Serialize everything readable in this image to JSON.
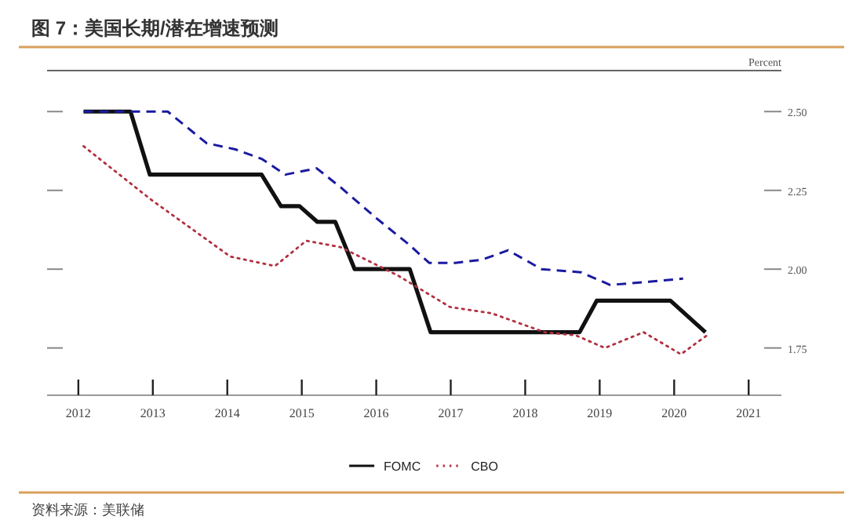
{
  "chart_data": {
    "type": "line",
    "title": "图 7：美国长期/潜在增速预测",
    "ylabel": "Percent",
    "annotations": [
      "资料来源：美联储"
    ],
    "xlim": [
      2011.58,
      2021.44
    ],
    "ylim": [
      1.6,
      2.63
    ],
    "xticks": [
      2012,
      2013,
      2014,
      2015,
      2016,
      2017,
      2018,
      2019,
      2020,
      2021
    ],
    "yticks": [
      1.75,
      {
        "value": 2,
        "label": "2.00"
      },
      2.25,
      {
        "value": 2.5,
        "label": "2.50"
      }
    ],
    "grid": false,
    "legend": "bottom",
    "series": [
      {
        "name": "FOMC",
        "color": "#111111",
        "line_style": "solid",
        "x": [
          2012.07,
          2012.7,
          2012.96,
          2014.46,
          2014.72,
          2014.97,
          2015.21,
          2015.45,
          2015.71,
          2016.45,
          2016.73,
          2018.73,
          2018.96,
          2019.95,
          2020.42
        ],
        "values": [
          2.5,
          2.5,
          2.3,
          2.3,
          2.2,
          2.2,
          2.15,
          2.15,
          2.0,
          2.0,
          1.8,
          1.8,
          1.9,
          1.9,
          1.8
        ]
      },
      {
        "color": "#1a1aa0",
        "line_style": "dashed",
        "x": [
          2012.07,
          2013.2,
          2013.72,
          2014.11,
          2014.46,
          2014.78,
          2015.2,
          2015.52,
          2016.01,
          2016.43,
          2016.71,
          2017.06,
          2017.42,
          2017.77,
          2018.22,
          2018.75,
          2019.14,
          2019.66,
          2020.12
        ],
        "values": [
          2.5,
          2.5,
          2.4,
          2.38,
          2.35,
          2.3,
          2.32,
          2.26,
          2.16,
          2.08,
          2.02,
          2.02,
          2.03,
          2.06,
          2.0,
          1.99,
          1.95,
          1.96,
          1.97
        ]
      },
      {
        "name": "CBO",
        "color": "#b03040",
        "line_style": "dotted",
        "x": [
          2012.07,
          2012.98,
          2014.04,
          2014.64,
          2015.06,
          2015.52,
          2016.29,
          2016.64,
          2016.99,
          2017.55,
          2018.26,
          2018.68,
          2019.07,
          2019.59,
          2020.09,
          2020.44
        ],
        "values": [
          2.39,
          2.22,
          2.04,
          2.01,
          2.09,
          2.07,
          1.98,
          1.93,
          1.88,
          1.86,
          1.8,
          1.79,
          1.75,
          1.8,
          1.73,
          1.79
        ]
      }
    ]
  }
}
